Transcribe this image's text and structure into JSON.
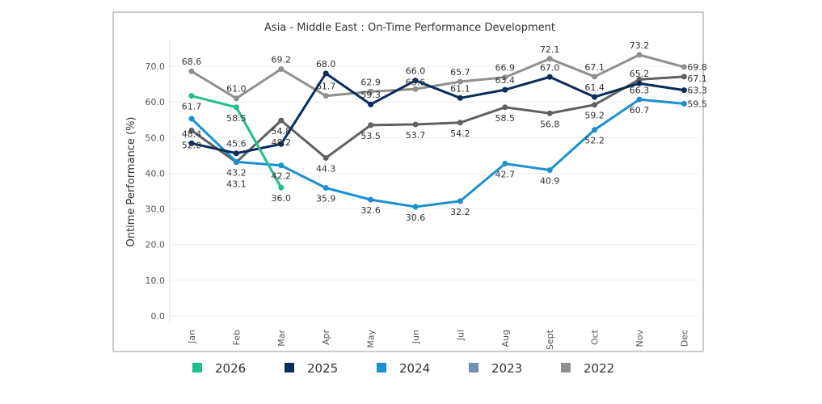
{
  "chart_data": {
    "type": "line",
    "title": "Asia - Middle East  : On-Time  Performance Development",
    "ylabel": "Ontime Performance (%)",
    "xlabel": "",
    "ylim": [
      0,
      70
    ],
    "yticks": [
      "0.0",
      "10.0",
      "20.0",
      "30.0",
      "40.0",
      "50.0",
      "60.0",
      "70.0"
    ],
    "grid": true,
    "legend": "bottom",
    "categories": [
      "Jan",
      "Feb",
      "Mar",
      "Apr",
      "May",
      "Jun",
      "Jul",
      "Aug",
      "Sept",
      "Oct",
      "Nov",
      "Dec"
    ],
    "series": [
      {
        "name": "2026",
        "color": "#1dbf8a",
        "values": [
          61.7,
          58.5,
          36.0,
          null,
          null,
          null,
          null,
          null,
          null,
          null,
          null,
          null
        ]
      },
      {
        "name": "2025",
        "color": "#0a2d5c",
        "values": [
          48.4,
          45.6,
          48.2,
          68.0,
          59.3,
          66.0,
          61.1,
          63.4,
          67.0,
          61.4,
          65.2,
          63.3
        ]
      },
      {
        "name": "2024",
        "color": "#1b90d0",
        "values": [
          55.3,
          43.2,
          42.2,
          35.9,
          32.6,
          30.6,
          32.2,
          42.7,
          40.9,
          52.2,
          60.7,
          59.5
        ]
      },
      {
        "name": "2023",
        "color": "#5f6062",
        "legend_color": "#7090b0",
        "values": [
          52.0,
          43.1,
          54.8,
          44.3,
          53.5,
          53.7,
          54.2,
          58.5,
          56.8,
          59.2,
          66.3,
          67.1
        ]
      },
      {
        "name": "2022",
        "color": "#8f8f8c",
        "values": [
          68.6,
          61.0,
          69.2,
          61.7,
          62.9,
          63.6,
          65.7,
          66.9,
          72.1,
          67.1,
          73.2,
          69.8
        ]
      }
    ]
  }
}
